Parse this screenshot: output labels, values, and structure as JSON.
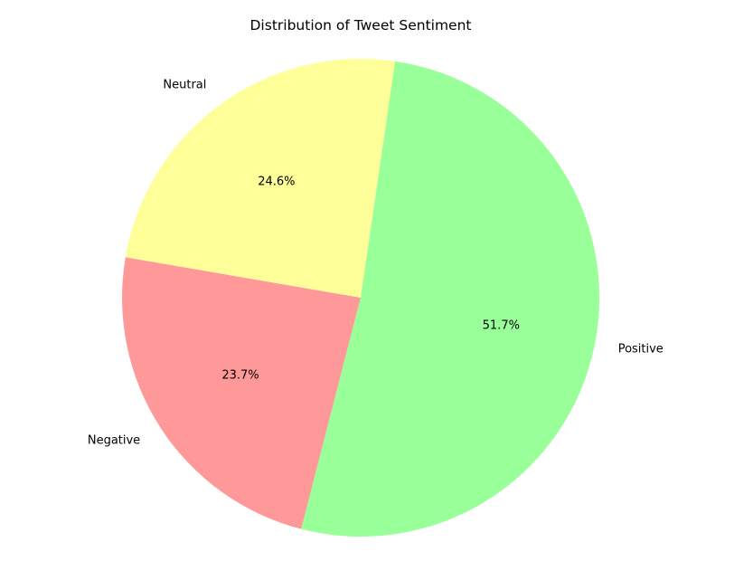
{
  "chart_data": {
    "type": "pie",
    "title": "Distribution of Tweet Sentiment",
    "slices": [
      {
        "label": "Neutral",
        "value": 24.6,
        "pct_label": "24.6%",
        "color": "#ffff99"
      },
      {
        "label": "Negative",
        "value": 23.7,
        "pct_label": "23.7%",
        "color": "#ff9999"
      },
      {
        "label": "Positive",
        "value": 51.7,
        "pct_label": "51.7%",
        "color": "#99ff99"
      }
    ],
    "legend": false
  }
}
